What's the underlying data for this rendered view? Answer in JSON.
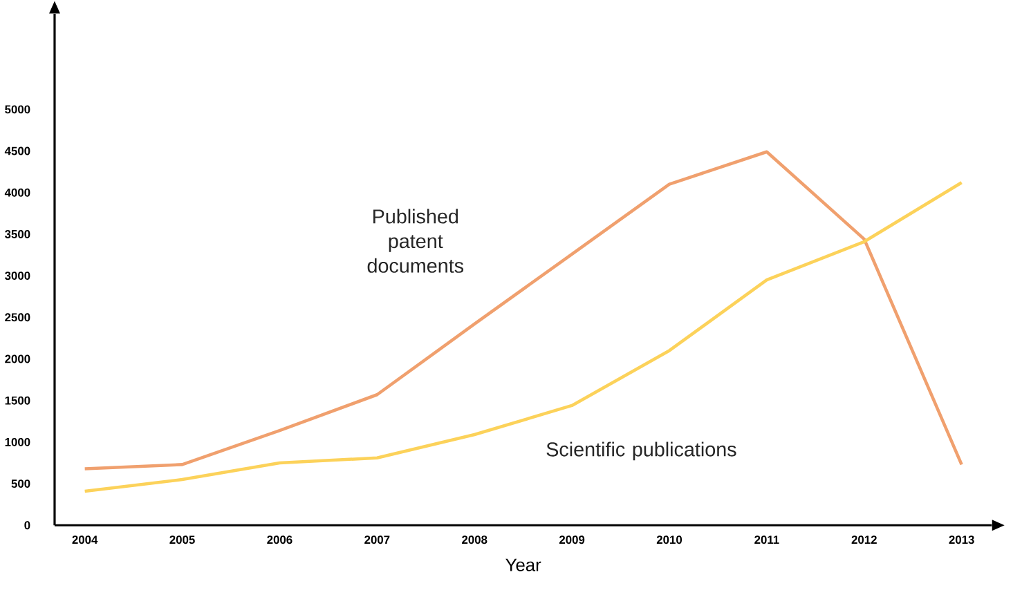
{
  "chart_data": {
    "type": "line",
    "xlabel": "Year",
    "categories": [
      "2004",
      "2005",
      "2006",
      "2007",
      "2008",
      "2009",
      "2010",
      "2011",
      "2012",
      "2013"
    ],
    "series": [
      {
        "name": "Published patent documents",
        "color": "#f0a06e",
        "values": [
          680,
          730,
          1140,
          1570,
          2420,
          3260,
          4100,
          4490,
          3440,
          730
        ]
      },
      {
        "name": "Scientific publications",
        "color": "#fcd25a",
        "values": [
          410,
          550,
          750,
          810,
          1090,
          1440,
          2100,
          2950,
          3410,
          4120
        ]
      }
    ],
    "ylim": [
      0,
      6150
    ],
    "yticks": [
      0,
      500,
      1000,
      1500,
      2000,
      2500,
      3000,
      3500,
      4000,
      4500,
      5000
    ],
    "marker": "none",
    "line_style": "solid"
  }
}
